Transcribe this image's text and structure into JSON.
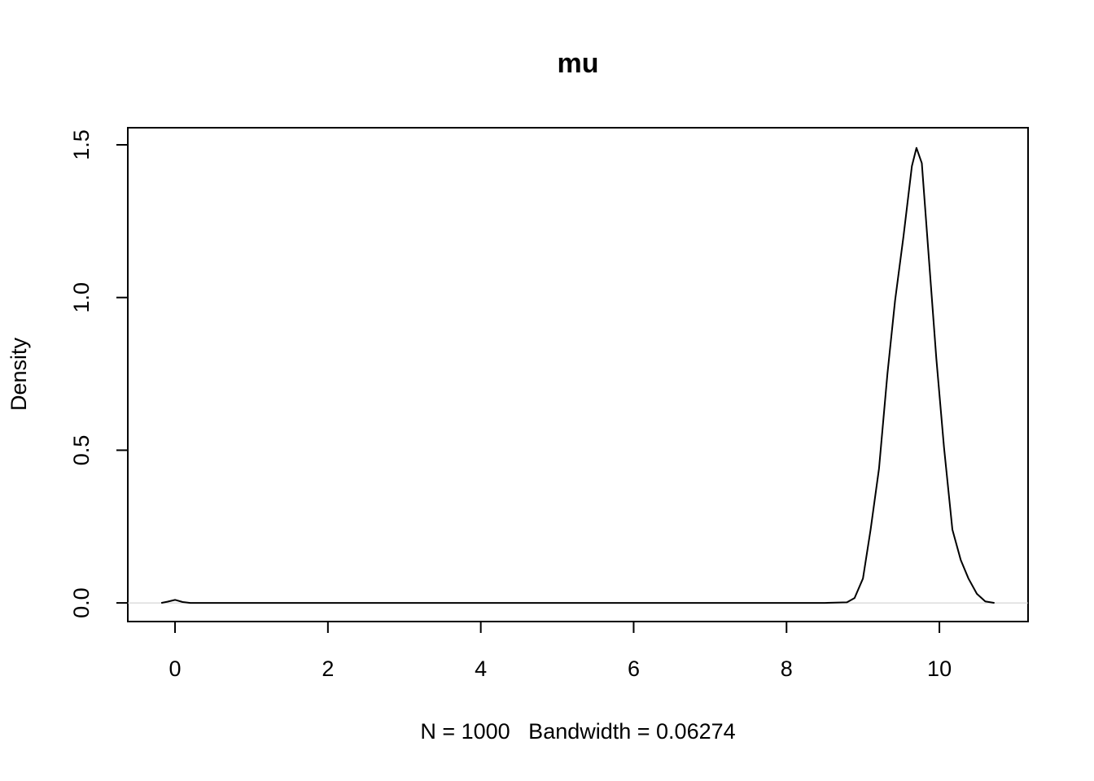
{
  "chart_data": {
    "type": "line",
    "title": "mu",
    "x_label": "N = 1000   Bandwidth = 0.06274",
    "y_label": "Density",
    "x": [
      -0.18,
      -0.1,
      0,
      0.1,
      0.2,
      1,
      3,
      5,
      7,
      8.5,
      8.79,
      8.89,
      9.0,
      9.1,
      9.21,
      9.32,
      9.42,
      9.53,
      9.64,
      9.7,
      9.77,
      9.85,
      9.96,
      10.06,
      10.17,
      10.28,
      10.38,
      10.49,
      10.6,
      10.72
    ],
    "series": [
      {
        "color": "#000000",
        "values": [
          0,
          0.004,
          0.01,
          0.003,
          0,
          0,
          0,
          0,
          0,
          0,
          0.002,
          0.016,
          0.08,
          0.24,
          0.44,
          0.75,
          0.99,
          1.2,
          1.43,
          1.49,
          1.44,
          1.17,
          0.8,
          0.51,
          0.24,
          0.14,
          0.08,
          0.03,
          0.005,
          0
        ]
      }
    ],
    "xlim": [
      -0.618,
      11.16
    ],
    "ylim": [
      -0.061,
      1.556
    ],
    "xticks": [
      0,
      2,
      4,
      6,
      8,
      10
    ],
    "yticks": [
      {
        "value": 0,
        "label": "0.0"
      },
      0.5,
      {
        "value": 1,
        "label": "1.0"
      },
      1.5
    ],
    "zero_line": true
  }
}
